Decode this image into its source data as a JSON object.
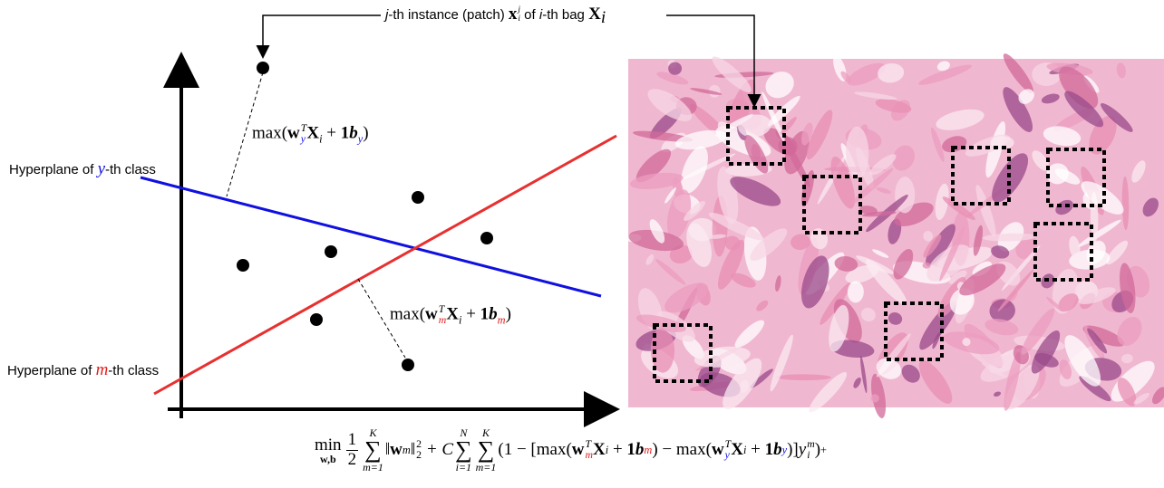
{
  "top_label": [
    "j",
    "-th instance (patch) ",
    "x",
    "i",
    "j",
    " of ",
    "i",
    "-th bag ",
    "X",
    "i"
  ],
  "hyperplane_y": [
    "Hyperplane of ",
    "y",
    "-th class"
  ],
  "hyperplane_m": [
    "Hyperplane of ",
    "m",
    "-th class"
  ],
  "max_y": [
    "max(",
    "w",
    "y",
    "T",
    "X",
    "i",
    " + ",
    "1",
    "b",
    "y",
    ")"
  ],
  "max_m": [
    "max(",
    "w",
    "m",
    "T",
    "X",
    "i",
    " + ",
    "1",
    "b",
    "m",
    ")"
  ],
  "objective": [
    "min",
    "w,b",
    "1",
    "2",
    "∑",
    "K",
    "m=1",
    "‖",
    "w",
    "m",
    "‖",
    "2",
    "2",
    " + C",
    "∑",
    "N",
    "i=1",
    "∑",
    "K",
    "m=1",
    "(1 − [max(",
    "w",
    "m",
    "T",
    "X",
    "i",
    " + ",
    "1",
    "b",
    "m",
    ") − max(",
    "w",
    "y",
    "T",
    "X",
    "i",
    " + ",
    "1",
    "b",
    "y",
    ")]",
    "y",
    "i",
    "m",
    ")",
    "+"
  ]
}
